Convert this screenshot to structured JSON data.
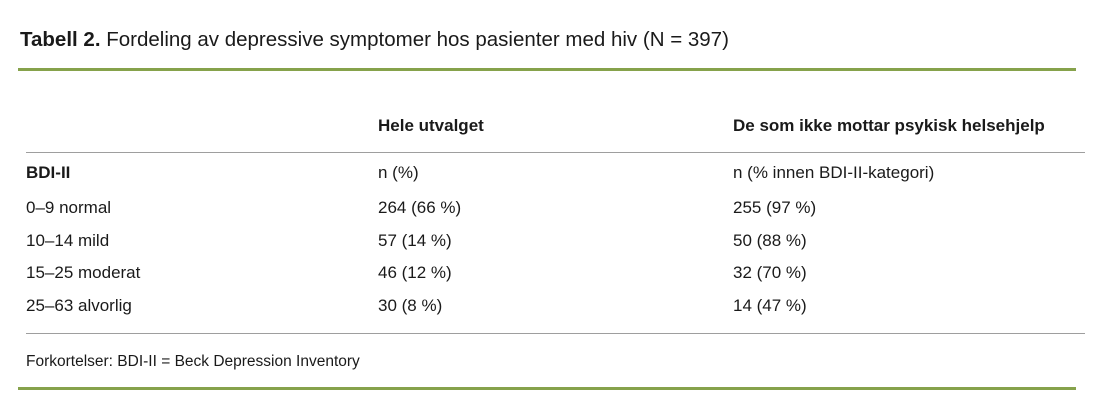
{
  "title": {
    "label": "Tabell 2.",
    "text": " Fordeling av depressive symptomer hos pasienter med hiv (N = 397)"
  },
  "table": {
    "columns": {
      "col2": "Hele utvalget",
      "col3": "De som ikke mottar psykisk helsehjelp"
    },
    "subheader": [
      "BDI-II",
      "n (%)",
      "n (% innen BDI-II-kategori)"
    ],
    "rows": [
      [
        "0–9 normal",
        "264 (66 %)",
        "255 (97 %)"
      ],
      [
        "10–14 mild",
        "57 (14 %)",
        "50 (88 %)"
      ],
      [
        "15–25 moderat",
        "46 (12 %)",
        "32 (70 %)"
      ],
      [
        "25–63 alvorlig",
        "30 (8 %)",
        "14 (47 %)"
      ]
    ]
  },
  "footnote": "Forkortelser: BDI-II = Beck Depression Inventory",
  "colors": {
    "accent_green": "#86a24b",
    "rule_gray": "#9e9e9e",
    "text": "#1a1a1a"
  }
}
